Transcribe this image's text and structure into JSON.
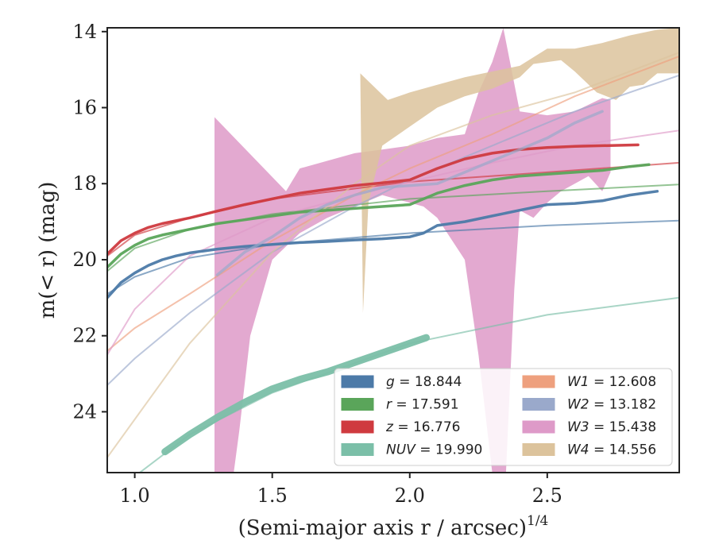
{
  "chart_data": {
    "type": "line",
    "xlabel": "(Semi-major axis r / arcsec)",
    "xlabel_exponent": "1/4",
    "ylabel": "m(< r) (mag)",
    "xlim": [
      0.9,
      2.98
    ],
    "ylim": [
      25.6,
      13.9
    ],
    "y_inverted": true,
    "xticks": [
      1.0,
      1.5,
      2.0,
      2.5
    ],
    "xtick_labels": [
      "1.0",
      "1.5",
      "2.0",
      "2.5"
    ],
    "yticks": [
      14,
      16,
      18,
      20,
      22,
      24
    ],
    "ytick_labels": [
      "14",
      "16",
      "18",
      "20",
      "22",
      "24"
    ],
    "grid": false,
    "legend_position": "lower-right",
    "legend": [
      {
        "band": "g",
        "value": "18.844",
        "color": "#4c7aa8"
      },
      {
        "band": "r",
        "value": "17.591",
        "color": "#5aa55a"
      },
      {
        "band": "z",
        "value": "16.776",
        "color": "#cf3a3f"
      },
      {
        "band": "NUV",
        "value": "19.990",
        "color": "#7bbfa8"
      },
      {
        "band": "W1",
        "value": "12.608",
        "color": "#eea07e"
      },
      {
        "band": "W2",
        "value": "13.182",
        "color": "#9aa9cb"
      },
      {
        "band": "W3",
        "value": "15.438",
        "color": "#de9ac8"
      },
      {
        "band": "W4",
        "value": "14.556",
        "color": "#dcc39c"
      }
    ],
    "series": [
      {
        "band": "g",
        "color": "#4c7aa8",
        "data": [
          [
            0.9,
            21.0
          ],
          [
            0.95,
            20.6
          ],
          [
            1.0,
            20.35
          ],
          [
            1.05,
            20.15
          ],
          [
            1.1,
            20.0
          ],
          [
            1.15,
            19.9
          ],
          [
            1.2,
            19.82
          ],
          [
            1.3,
            19.72
          ],
          [
            1.4,
            19.65
          ],
          [
            1.5,
            19.6
          ],
          [
            1.6,
            19.55
          ],
          [
            1.7,
            19.52
          ],
          [
            1.8,
            19.48
          ],
          [
            1.9,
            19.45
          ],
          [
            2.0,
            19.4
          ],
          [
            2.05,
            19.3
          ],
          [
            2.1,
            19.1
          ],
          [
            2.2,
            19.0
          ],
          [
            2.3,
            18.85
          ],
          [
            2.4,
            18.7
          ],
          [
            2.5,
            18.55
          ],
          [
            2.6,
            18.52
          ],
          [
            2.7,
            18.45
          ],
          [
            2.8,
            18.3
          ],
          [
            2.9,
            18.2
          ]
        ],
        "model": [
          [
            0.9,
            20.9
          ],
          [
            1.0,
            20.45
          ],
          [
            1.2,
            19.95
          ],
          [
            1.5,
            19.6
          ],
          [
            2.0,
            19.3
          ],
          [
            2.5,
            19.1
          ],
          [
            2.98,
            18.97
          ]
        ]
      },
      {
        "band": "r",
        "color": "#5aa55a",
        "data": [
          [
            0.9,
            20.2
          ],
          [
            0.95,
            19.85
          ],
          [
            1.0,
            19.62
          ],
          [
            1.05,
            19.45
          ],
          [
            1.1,
            19.35
          ],
          [
            1.2,
            19.2
          ],
          [
            1.3,
            19.05
          ],
          [
            1.4,
            18.95
          ],
          [
            1.5,
            18.85
          ],
          [
            1.6,
            18.75
          ],
          [
            1.7,
            18.7
          ],
          [
            1.8,
            18.65
          ],
          [
            1.9,
            18.6
          ],
          [
            2.0,
            18.55
          ],
          [
            2.1,
            18.25
          ],
          [
            2.2,
            18.05
          ],
          [
            2.3,
            17.9
          ],
          [
            2.4,
            17.8
          ],
          [
            2.5,
            17.75
          ],
          [
            2.6,
            17.7
          ],
          [
            2.7,
            17.65
          ],
          [
            2.8,
            17.55
          ],
          [
            2.87,
            17.5
          ]
        ],
        "model": [
          [
            0.9,
            20.3
          ],
          [
            1.0,
            19.7
          ],
          [
            1.2,
            19.2
          ],
          [
            1.5,
            18.8
          ],
          [
            2.0,
            18.4
          ],
          [
            2.5,
            18.2
          ],
          [
            2.98,
            18.02
          ]
        ]
      },
      {
        "band": "z",
        "color": "#cf3a3f",
        "data": [
          [
            0.9,
            19.85
          ],
          [
            0.95,
            19.5
          ],
          [
            1.0,
            19.3
          ],
          [
            1.05,
            19.15
          ],
          [
            1.1,
            19.05
          ],
          [
            1.2,
            18.9
          ],
          [
            1.3,
            18.72
          ],
          [
            1.4,
            18.55
          ],
          [
            1.5,
            18.4
          ],
          [
            1.6,
            18.25
          ],
          [
            1.7,
            18.15
          ],
          [
            1.8,
            18.05
          ],
          [
            1.9,
            17.98
          ],
          [
            2.0,
            17.9
          ],
          [
            2.1,
            17.6
          ],
          [
            2.2,
            17.35
          ],
          [
            2.3,
            17.2
          ],
          [
            2.4,
            17.1
          ],
          [
            2.5,
            17.05
          ],
          [
            2.6,
            17.02
          ],
          [
            2.7,
            17.0
          ],
          [
            2.83,
            16.98
          ]
        ],
        "model": [
          [
            0.9,
            19.9
          ],
          [
            1.0,
            19.35
          ],
          [
            1.2,
            18.9
          ],
          [
            1.5,
            18.4
          ],
          [
            2.0,
            17.95
          ],
          [
            2.5,
            17.7
          ],
          [
            2.98,
            17.45
          ]
        ]
      },
      {
        "band": "NUV",
        "color": "#7bbfa8",
        "data": [
          [
            1.11,
            25.05
          ],
          [
            1.2,
            24.6
          ],
          [
            1.3,
            24.15
          ],
          [
            1.4,
            23.75
          ],
          [
            1.5,
            23.4
          ],
          [
            1.6,
            23.15
          ],
          [
            1.7,
            22.95
          ],
          [
            1.8,
            22.7
          ],
          [
            1.9,
            22.45
          ],
          [
            2.0,
            22.2
          ],
          [
            2.06,
            22.05
          ]
        ],
        "model": [
          [
            0.9,
            26.1
          ],
          [
            1.0,
            25.7
          ],
          [
            1.2,
            24.6
          ],
          [
            1.5,
            23.5
          ],
          [
            2.0,
            22.2
          ],
          [
            2.5,
            21.45
          ],
          [
            2.98,
            21.0
          ]
        ]
      },
      {
        "band": "W1",
        "color": "#eea07e",
        "model": [
          [
            0.9,
            22.4
          ],
          [
            1.0,
            21.8
          ],
          [
            1.2,
            20.9
          ],
          [
            1.5,
            19.5
          ],
          [
            1.8,
            18.3
          ],
          [
            2.0,
            17.6
          ],
          [
            2.3,
            16.7
          ],
          [
            2.6,
            15.7
          ],
          [
            2.98,
            14.65
          ]
        ]
      },
      {
        "band": "W2",
        "color": "#9aa9cb",
        "data": [
          [
            1.3,
            20.4
          ],
          [
            1.4,
            19.8
          ],
          [
            1.5,
            19.4
          ],
          [
            1.6,
            18.9
          ],
          [
            1.7,
            18.55
          ],
          [
            1.8,
            18.3
          ],
          [
            1.9,
            18.1
          ],
          [
            2.0,
            18.05
          ],
          [
            2.1,
            18.0
          ],
          [
            2.2,
            17.7
          ],
          [
            2.3,
            17.4
          ],
          [
            2.4,
            17.1
          ],
          [
            2.5,
            16.8
          ],
          [
            2.6,
            16.4
          ],
          [
            2.7,
            16.1
          ]
        ],
        "model": [
          [
            0.9,
            23.3
          ],
          [
            1.0,
            22.6
          ],
          [
            1.2,
            21.4
          ],
          [
            1.5,
            19.8
          ],
          [
            1.8,
            18.6
          ],
          [
            2.0,
            17.9
          ],
          [
            2.3,
            17.0
          ],
          [
            2.6,
            16.1
          ],
          [
            2.98,
            15.15
          ]
        ]
      },
      {
        "band": "W3",
        "color": "#de9ac8",
        "model": [
          [
            0.9,
            22.5
          ],
          [
            1.0,
            21.3
          ],
          [
            1.2,
            19.9
          ],
          [
            1.5,
            18.9
          ],
          [
            1.8,
            18.3
          ],
          [
            2.0,
            17.95
          ],
          [
            2.3,
            17.45
          ],
          [
            2.6,
            17.0
          ],
          [
            2.98,
            16.6
          ]
        ],
        "band_upper": [
          [
            1.29,
            16.25
          ],
          [
            1.55,
            18.2
          ],
          [
            1.6,
            17.6
          ],
          [
            1.7,
            17.4
          ],
          [
            1.8,
            17.2
          ],
          [
            1.9,
            17.1
          ],
          [
            2.0,
            17.0
          ],
          [
            2.1,
            16.8
          ],
          [
            2.2,
            16.7
          ],
          [
            2.25,
            15.6
          ],
          [
            2.3,
            14.8
          ],
          [
            2.34,
            13.9
          ],
          [
            2.4,
            16.1
          ],
          [
            2.5,
            16.2
          ],
          [
            2.6,
            16.1
          ],
          [
            2.7,
            15.75
          ],
          [
            2.73,
            15.8
          ]
        ],
        "band_lower": [
          [
            2.73,
            17.7
          ],
          [
            2.7,
            18.2
          ],
          [
            2.65,
            17.8
          ],
          [
            2.55,
            18.2
          ],
          [
            2.5,
            18.5
          ],
          [
            2.45,
            18.9
          ],
          [
            2.4,
            18.7
          ],
          [
            2.38,
            20.8
          ],
          [
            2.35,
            25.6
          ],
          [
            2.3,
            25.6
          ],
          [
            2.25,
            22.5
          ],
          [
            2.2,
            20.0
          ],
          [
            2.1,
            18.9
          ],
          [
            2.05,
            18.6
          ],
          [
            2.0,
            18.5
          ],
          [
            1.9,
            18.3
          ],
          [
            1.8,
            18.6
          ],
          [
            1.7,
            18.9
          ],
          [
            1.6,
            19.3
          ],
          [
            1.5,
            20.0
          ],
          [
            1.42,
            22.0
          ],
          [
            1.38,
            24.5
          ],
          [
            1.36,
            25.6
          ],
          [
            1.29,
            25.6
          ]
        ]
      },
      {
        "band": "W4",
        "color": "#dcc39c",
        "model": [
          [
            0.9,
            25.2
          ],
          [
            1.0,
            24.2
          ],
          [
            1.2,
            22.2
          ],
          [
            1.5,
            19.8
          ],
          [
            1.8,
            18.0
          ],
          [
            2.0,
            17.0
          ],
          [
            2.3,
            16.2
          ],
          [
            2.6,
            15.6
          ],
          [
            2.98,
            14.55
          ]
        ],
        "band_upper": [
          [
            1.82,
            15.1
          ],
          [
            1.92,
            15.8
          ],
          [
            2.0,
            15.6
          ],
          [
            2.1,
            15.4
          ],
          [
            2.2,
            15.2
          ],
          [
            2.3,
            15.05
          ],
          [
            2.4,
            14.9
          ],
          [
            2.5,
            14.45
          ],
          [
            2.6,
            14.45
          ],
          [
            2.7,
            14.3
          ],
          [
            2.8,
            14.1
          ],
          [
            2.9,
            13.95
          ],
          [
            2.98,
            13.9
          ]
        ],
        "band_lower": [
          [
            2.98,
            15.1
          ],
          [
            2.9,
            15.1
          ],
          [
            2.85,
            15.4
          ],
          [
            2.8,
            15.45
          ],
          [
            2.75,
            15.8
          ],
          [
            2.68,
            15.6
          ],
          [
            2.6,
            15.05
          ],
          [
            2.55,
            14.75
          ],
          [
            2.45,
            14.85
          ],
          [
            2.4,
            15.2
          ],
          [
            2.3,
            15.5
          ],
          [
            2.2,
            15.7
          ],
          [
            2.1,
            16.0
          ],
          [
            2.0,
            16.5
          ],
          [
            1.9,
            17.0
          ],
          [
            1.85,
            18.5
          ],
          [
            1.83,
            21.4
          ]
        ]
      }
    ]
  }
}
